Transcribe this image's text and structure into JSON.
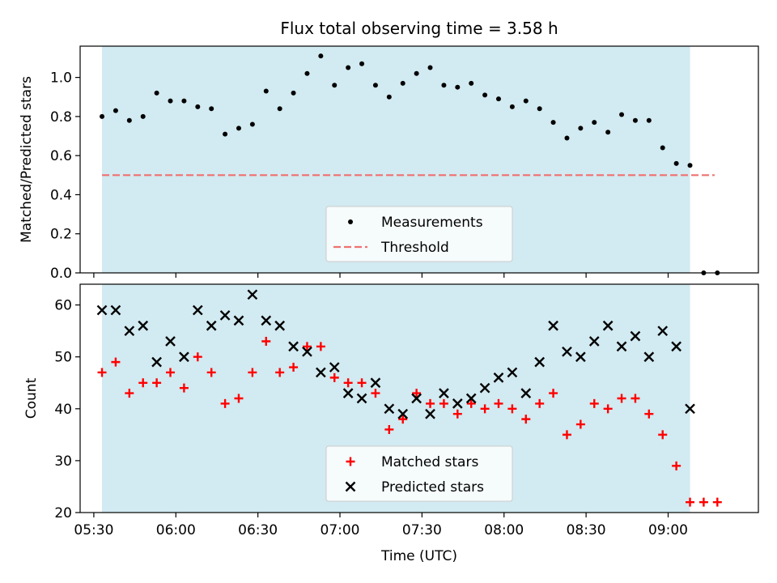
{
  "title": "Flux total observing time = 3.58 h",
  "chart_data": [
    {
      "type": "scatter",
      "ylabel": "Matched/Predicted stars",
      "ylim": [
        0,
        1.16
      ],
      "xlim": [
        "05:25",
        "09:33"
      ],
      "yticks": [
        0.0,
        0.2,
        0.4,
        0.6,
        0.8,
        1.0
      ],
      "ytick_labels": [
        "0.0",
        "0.2",
        "0.4",
        "0.6",
        "0.8",
        "1.0"
      ],
      "shaded_span": [
        "05:33",
        "09:08"
      ],
      "threshold": {
        "y": 0.5,
        "x": [
          "05:33",
          "09:17"
        ]
      },
      "legend": {
        "placement": "lower center",
        "entries": [
          {
            "label": "Measurements",
            "marker": "dot",
            "color": "#000000"
          },
          {
            "label": "Threshold",
            "marker": "dashed-line",
            "color": "#f07070"
          }
        ]
      },
      "series": [
        {
          "name": "Measurements",
          "x": [
            "05:33",
            "05:38",
            "05:43",
            "05:48",
            "05:53",
            "05:58",
            "06:03",
            "06:08",
            "06:13",
            "06:18",
            "06:23",
            "06:28",
            "06:33",
            "06:38",
            "06:43",
            "06:48",
            "06:53",
            "06:58",
            "07:03",
            "07:08",
            "07:13",
            "07:18",
            "07:23",
            "07:28",
            "07:33",
            "07:38",
            "07:43",
            "07:48",
            "07:53",
            "07:58",
            "08:03",
            "08:08",
            "08:13",
            "08:18",
            "08:23",
            "08:28",
            "08:33",
            "08:38",
            "08:43",
            "08:48",
            "08:53",
            "08:58",
            "09:03",
            "09:08",
            "09:13",
            "09:18"
          ],
          "y": [
            0.8,
            0.83,
            0.78,
            0.8,
            0.92,
            0.88,
            0.88,
            0.85,
            0.84,
            0.71,
            0.74,
            0.76,
            0.93,
            0.84,
            0.92,
            1.02,
            1.11,
            0.96,
            1.05,
            1.07,
            0.96,
            0.9,
            0.97,
            1.02,
            1.05,
            0.96,
            0.95,
            0.97,
            0.91,
            0.89,
            0.85,
            0.88,
            0.84,
            0.77,
            0.69,
            0.74,
            0.77,
            0.72,
            0.81,
            0.78,
            0.78,
            0.64,
            0.56,
            0.55,
            0.0,
            0.0
          ]
        }
      ]
    },
    {
      "type": "scatter",
      "xlabel": "Time (UTC)",
      "ylabel": "Count",
      "ylim": [
        20,
        64
      ],
      "xlim": [
        "05:25",
        "09:33"
      ],
      "yticks": [
        20,
        30,
        40,
        50,
        60
      ],
      "ytick_labels": [
        "20",
        "30",
        "40",
        "50",
        "60"
      ],
      "xtick_labels": [
        "05:30",
        "06:00",
        "06:30",
        "07:00",
        "07:30",
        "08:00",
        "08:30",
        "09:00"
      ],
      "shaded_span": [
        "05:33",
        "09:08"
      ],
      "legend": {
        "placement": "lower center",
        "entries": [
          {
            "label": "Matched stars",
            "marker": "plus",
            "color": "#ff0000"
          },
          {
            "label": "Predicted stars",
            "marker": "x",
            "color": "#000000"
          }
        ]
      },
      "series": [
        {
          "name": "Matched stars",
          "x": [
            "05:33",
            "05:38",
            "05:43",
            "05:48",
            "05:53",
            "05:58",
            "06:03",
            "06:08",
            "06:13",
            "06:18",
            "06:23",
            "06:28",
            "06:33",
            "06:38",
            "06:43",
            "06:48",
            "06:53",
            "06:58",
            "07:03",
            "07:08",
            "07:13",
            "07:18",
            "07:23",
            "07:28",
            "07:33",
            "07:38",
            "07:43",
            "07:48",
            "07:53",
            "07:58",
            "08:03",
            "08:08",
            "08:13",
            "08:18",
            "08:23",
            "08:28",
            "08:33",
            "08:38",
            "08:43",
            "08:48",
            "08:53",
            "08:58",
            "09:03",
            "09:08",
            "09:13",
            "09:18"
          ],
          "y": [
            47,
            49,
            43,
            45,
            45,
            47,
            44,
            50,
            47,
            41,
            42,
            47,
            53,
            47,
            48,
            52,
            52,
            46,
            45,
            45,
            43,
            36,
            38,
            43,
            41,
            41,
            39,
            41,
            40,
            41,
            40,
            38,
            41,
            43,
            35,
            37,
            41,
            40,
            42,
            42,
            39,
            35,
            29,
            22,
            22,
            22
          ]
        },
        {
          "name": "Predicted stars",
          "x": [
            "05:33",
            "05:38",
            "05:43",
            "05:48",
            "05:53",
            "05:58",
            "06:03",
            "06:08",
            "06:13",
            "06:18",
            "06:23",
            "06:28",
            "06:33",
            "06:38",
            "06:43",
            "06:48",
            "06:53",
            "06:58",
            "07:03",
            "07:08",
            "07:13",
            "07:18",
            "07:23",
            "07:28",
            "07:33",
            "07:38",
            "07:43",
            "07:48",
            "07:53",
            "07:58",
            "08:03",
            "08:08",
            "08:13",
            "08:18",
            "08:23",
            "08:28",
            "08:33",
            "08:38",
            "08:43",
            "08:48",
            "08:53",
            "08:58",
            "09:03",
            "09:08"
          ],
          "y": [
            59,
            59,
            55,
            56,
            49,
            53,
            50,
            59,
            56,
            58,
            57,
            62,
            57,
            56,
            52,
            51,
            47,
            48,
            43,
            42,
            45,
            40,
            39,
            42,
            39,
            43,
            41,
            42,
            44,
            46,
            47,
            43,
            49,
            56,
            51,
            50,
            53,
            56,
            52,
            54,
            50,
            55,
            52,
            40
          ]
        }
      ]
    }
  ],
  "colors": {
    "span": "#add8e6",
    "matched": "#ff0000",
    "predicted": "#000000",
    "threshold": "#f07070"
  }
}
